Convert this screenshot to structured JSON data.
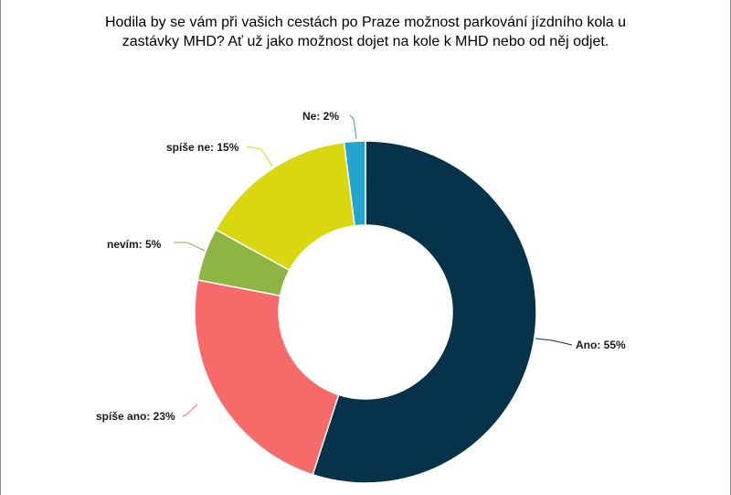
{
  "chart_data": {
    "type": "pie",
    "variant": "donut",
    "title_lines": [
      "Hodila by se vám při vašich cestách po Praze možnost parkování jízdního kola u",
      "zastávky MHD? Ať už jako možnost dojet na kole k MHD nebo od něj odjet."
    ],
    "slices": [
      {
        "label": "Ano",
        "value": 55,
        "color": "#06324a",
        "display": "Ano: 55%"
      },
      {
        "label": "spíše ano",
        "value": 23,
        "color": "#f76a6a",
        "display": "spíše ano: 23%"
      },
      {
        "label": "nevím",
        "value": 5,
        "color": "#8db543",
        "display": "nevím: 5%"
      },
      {
        "label": "spíše ne",
        "value": 15,
        "color": "#d8d710",
        "display": "spíše ne: 15%"
      },
      {
        "label": "Ne",
        "value": 2,
        "color": "#23a5cf",
        "display": "Ne: 2%"
      }
    ],
    "legend": "none"
  }
}
